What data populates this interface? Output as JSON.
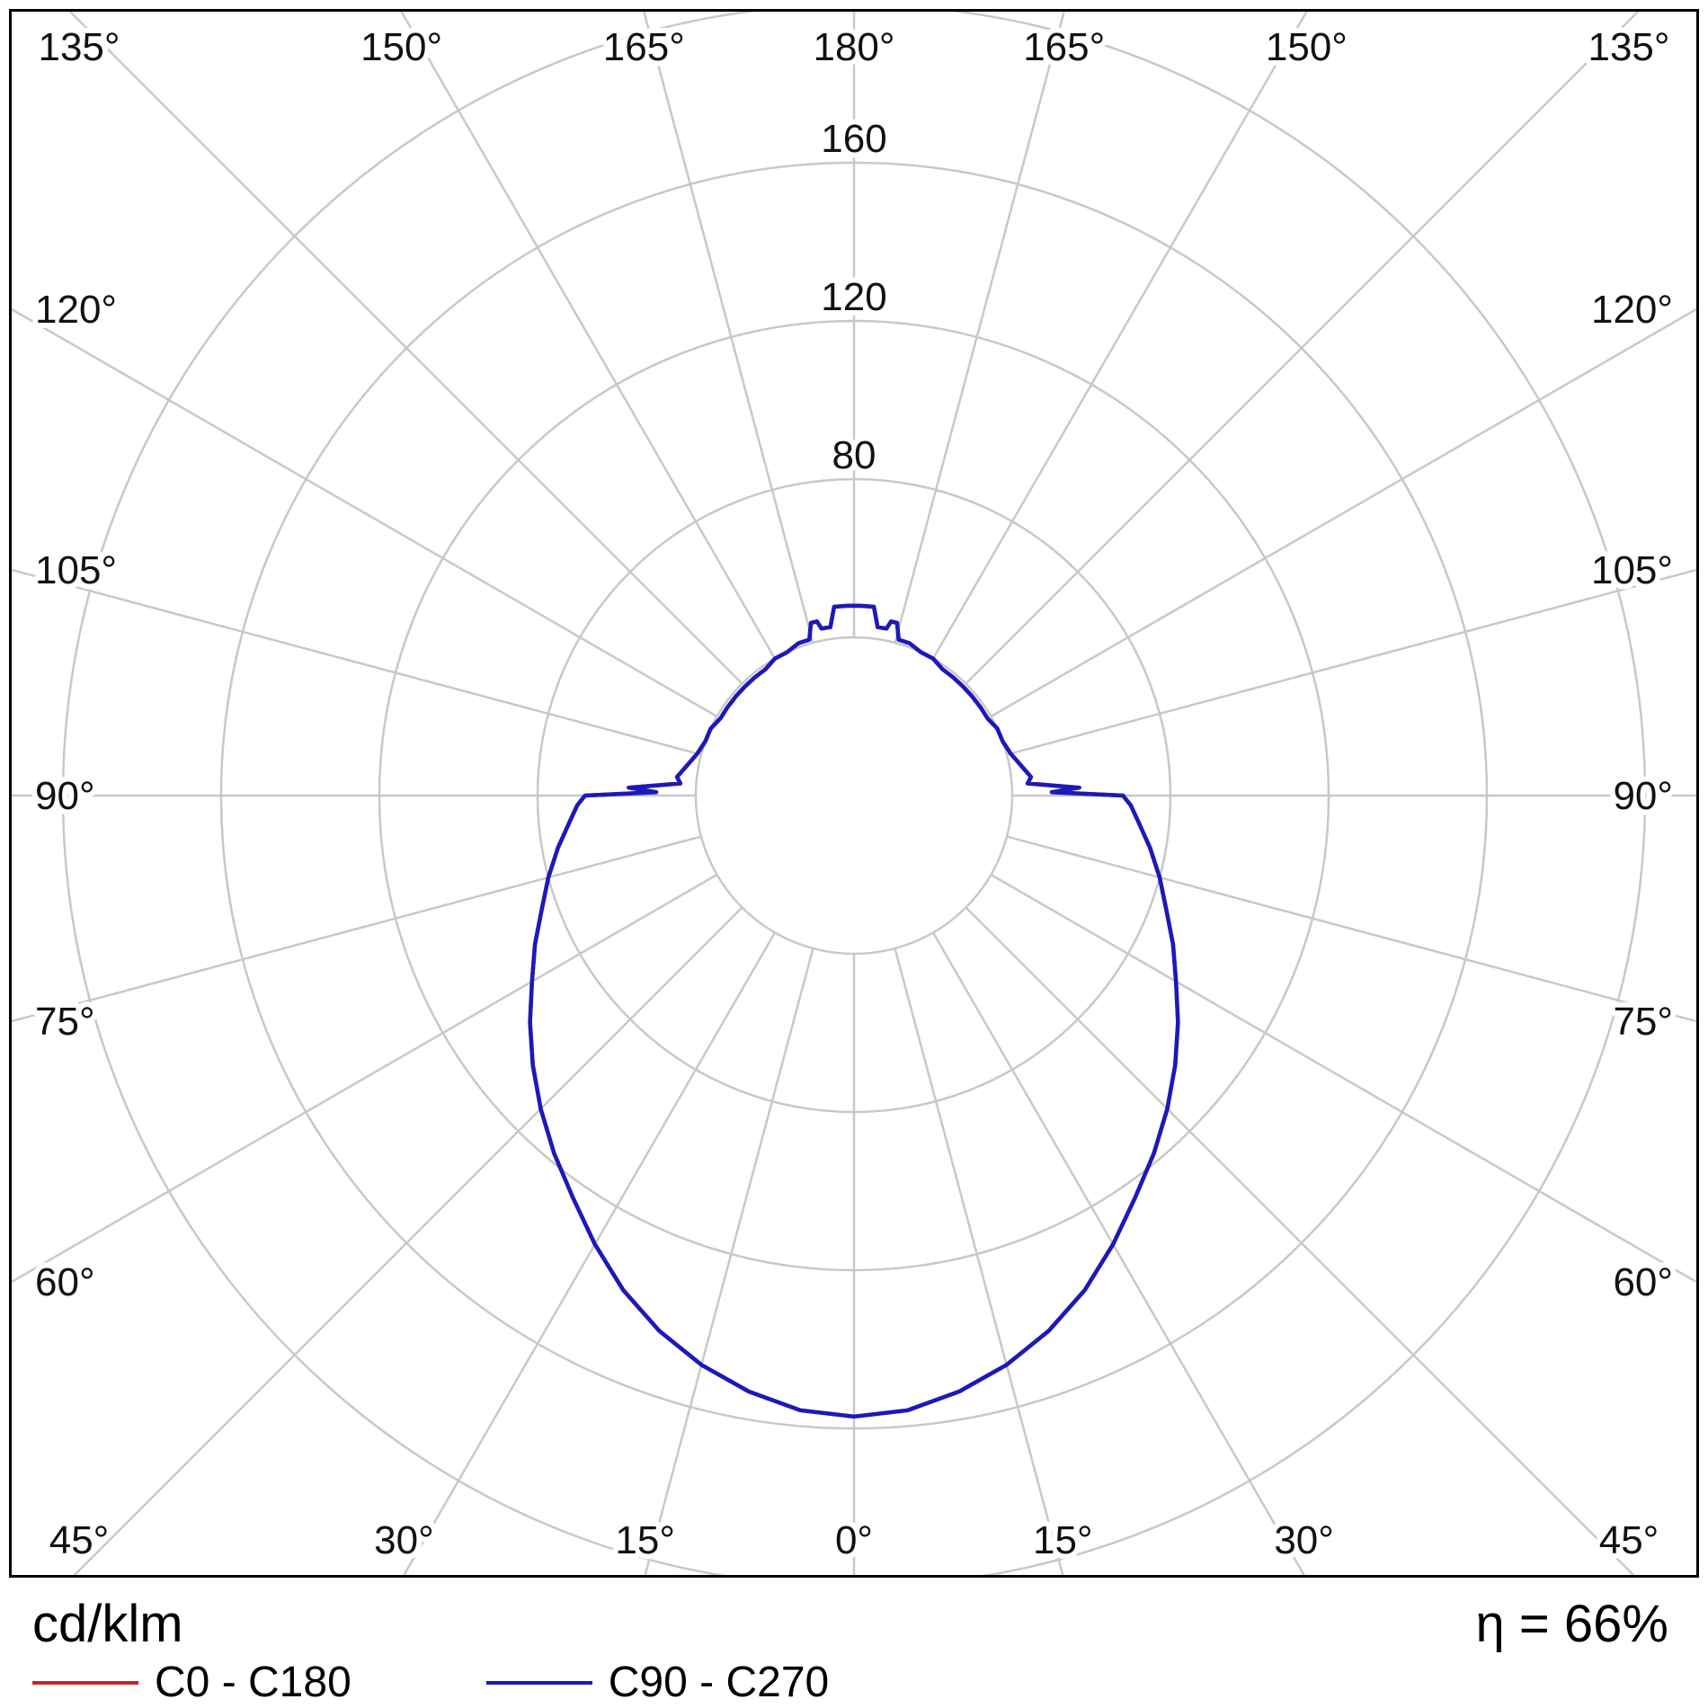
{
  "chart_data": {
    "type": "line",
    "coordinate_system": "polar",
    "polar_zero": "bottom",
    "unit_label": "cd/klm",
    "efficiency_label": "η = 66%",
    "angle_step_deg": 15,
    "angle_tick_labels": [
      "0°",
      "15°",
      "30°",
      "45°",
      "60°",
      "75°",
      "90°",
      "105°",
      "120°",
      "135°",
      "150°",
      "165°",
      "180°"
    ],
    "radial_rings": [
      40,
      80,
      120,
      160,
      200
    ],
    "radial_ring_labels": [
      "80",
      "120",
      "160"
    ],
    "radial_max": 200,
    "grid_on": true,
    "grid_color": "#c8c8c8",
    "axis_color": "#000000",
    "label_color": "#111111",
    "legend_position": "bottom",
    "series": [
      {
        "name": "C0 - C180",
        "color": "#cc2222",
        "points": [
          [
            0,
            157
          ],
          [
            5,
            156
          ],
          [
            10,
            153
          ],
          [
            15,
            149
          ],
          [
            20,
            144
          ],
          [
            25,
            138
          ],
          [
            30,
            131
          ],
          [
            35,
            124
          ],
          [
            40,
            118
          ],
          [
            45,
            112
          ],
          [
            50,
            106
          ],
          [
            55,
            100
          ],
          [
            60,
            94
          ],
          [
            65,
            89
          ],
          [
            70,
            84
          ],
          [
            75,
            80
          ],
          [
            80,
            76
          ],
          [
            85,
            72
          ],
          [
            88,
            70
          ],
          [
            90,
            68
          ],
          [
            91,
            50
          ],
          [
            92,
            57
          ],
          [
            94,
            44
          ],
          [
            96,
            45
          ],
          [
            100,
            43
          ],
          [
            105,
            41
          ],
          [
            110,
            40
          ],
          [
            115,
            40
          ],
          [
            120,
            39
          ],
          [
            125,
            39
          ],
          [
            130,
            39
          ],
          [
            135,
            39
          ],
          [
            140,
            39
          ],
          [
            145,
            39
          ],
          [
            150,
            40
          ],
          [
            155,
            40
          ],
          [
            160,
            41
          ],
          [
            164,
            41
          ],
          [
            166,
            45
          ],
          [
            168,
            45
          ],
          [
            169,
            43
          ],
          [
            170,
            43
          ],
          [
            172,
            43
          ],
          [
            174,
            48
          ],
          [
            178,
            48
          ],
          [
            180,
            48
          ]
        ]
      },
      {
        "name": "C90 - C270",
        "color": "#1a1abc",
        "points": [
          [
            0,
            157
          ],
          [
            5,
            156
          ],
          [
            10,
            153
          ],
          [
            15,
            149
          ],
          [
            20,
            144
          ],
          [
            25,
            138
          ],
          [
            30,
            131
          ],
          [
            35,
            124
          ],
          [
            40,
            118
          ],
          [
            45,
            112
          ],
          [
            50,
            106
          ],
          [
            55,
            100
          ],
          [
            60,
            94
          ],
          [
            65,
            89
          ],
          [
            70,
            84
          ],
          [
            75,
            80
          ],
          [
            80,
            76
          ],
          [
            85,
            72
          ],
          [
            88,
            70
          ],
          [
            90,
            68
          ],
          [
            91,
            50
          ],
          [
            92,
            57
          ],
          [
            94,
            44
          ],
          [
            96,
            45
          ],
          [
            100,
            43
          ],
          [
            105,
            41
          ],
          [
            110,
            40
          ],
          [
            115,
            40
          ],
          [
            120,
            39
          ],
          [
            125,
            39
          ],
          [
            130,
            39
          ],
          [
            135,
            39
          ],
          [
            140,
            39
          ],
          [
            145,
            39
          ],
          [
            150,
            40
          ],
          [
            155,
            40
          ],
          [
            160,
            41
          ],
          [
            164,
            41
          ],
          [
            166,
            45
          ],
          [
            168,
            45
          ],
          [
            169,
            43
          ],
          [
            170,
            43
          ],
          [
            172,
            43
          ],
          [
            174,
            48
          ],
          [
            178,
            48
          ],
          [
            180,
            48
          ]
        ]
      }
    ]
  }
}
